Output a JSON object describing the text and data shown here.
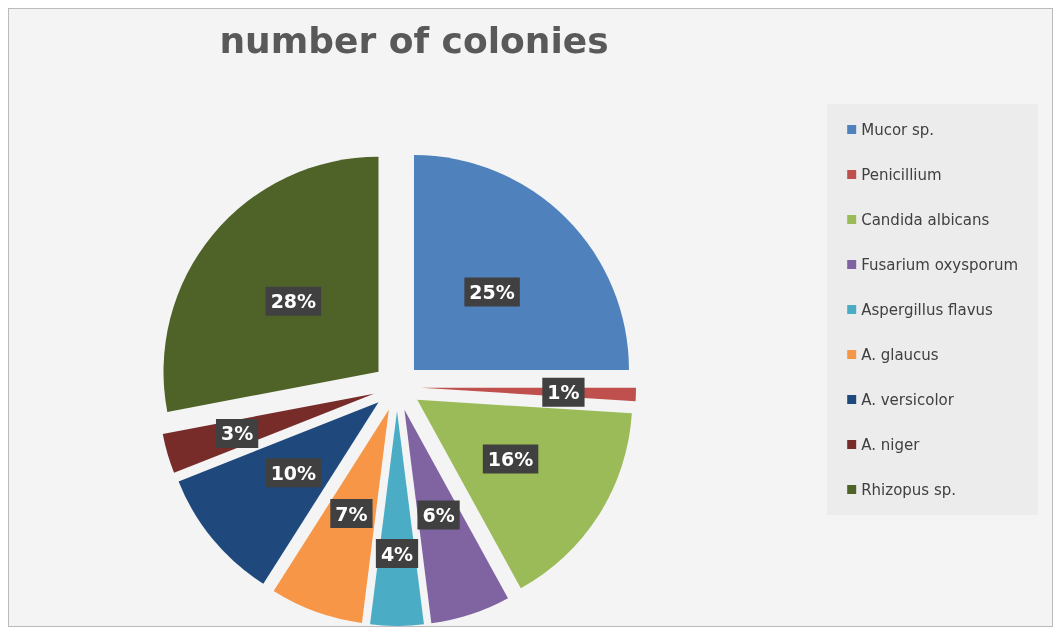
{
  "chart_data": {
    "type": "pie",
    "title": "number of colonies",
    "categories": [
      "Mucor sp.",
      "Penicillium",
      "Candida albicans",
      "Fusarium oxysporum",
      "Aspergillus flavus",
      "A. glaucus",
      "A. versicolor",
      "A. niger",
      "Rhizopus sp."
    ],
    "values": [
      25,
      1,
      16,
      6,
      4,
      7,
      10,
      3,
      28
    ],
    "value_labels": [
      "25%",
      "1%",
      "16%",
      "6%",
      "4%",
      "7%",
      "10%",
      "3%",
      "28%"
    ],
    "colors": [
      "#4f81bd",
      "#c0504d",
      "#9bbb59",
      "#8064a2",
      "#4bacc6",
      "#f79646",
      "#1f497d",
      "#772c2a",
      "#4f6228"
    ],
    "legend": "right"
  }
}
